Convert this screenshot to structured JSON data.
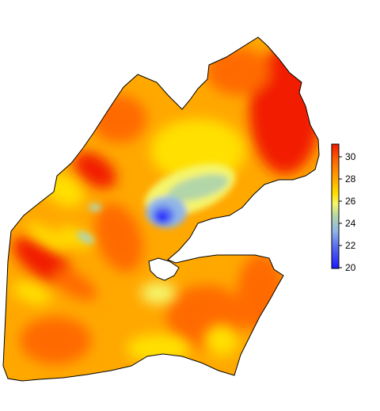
{
  "legend": {
    "ticks": [
      "30",
      "28",
      "26",
      "24",
      "22",
      "20"
    ],
    "colors": {
      "c31": "#f21a00",
      "c29": "#ff6a00",
      "c27": "#ffa800",
      "c26": "#ffe000",
      "c25": "#f5f56a",
      "c23": "#b3d6a8",
      "c22": "#8fb5e8",
      "c21": "#5a6ff0",
      "c20": "#1a1aff"
    }
  }
}
